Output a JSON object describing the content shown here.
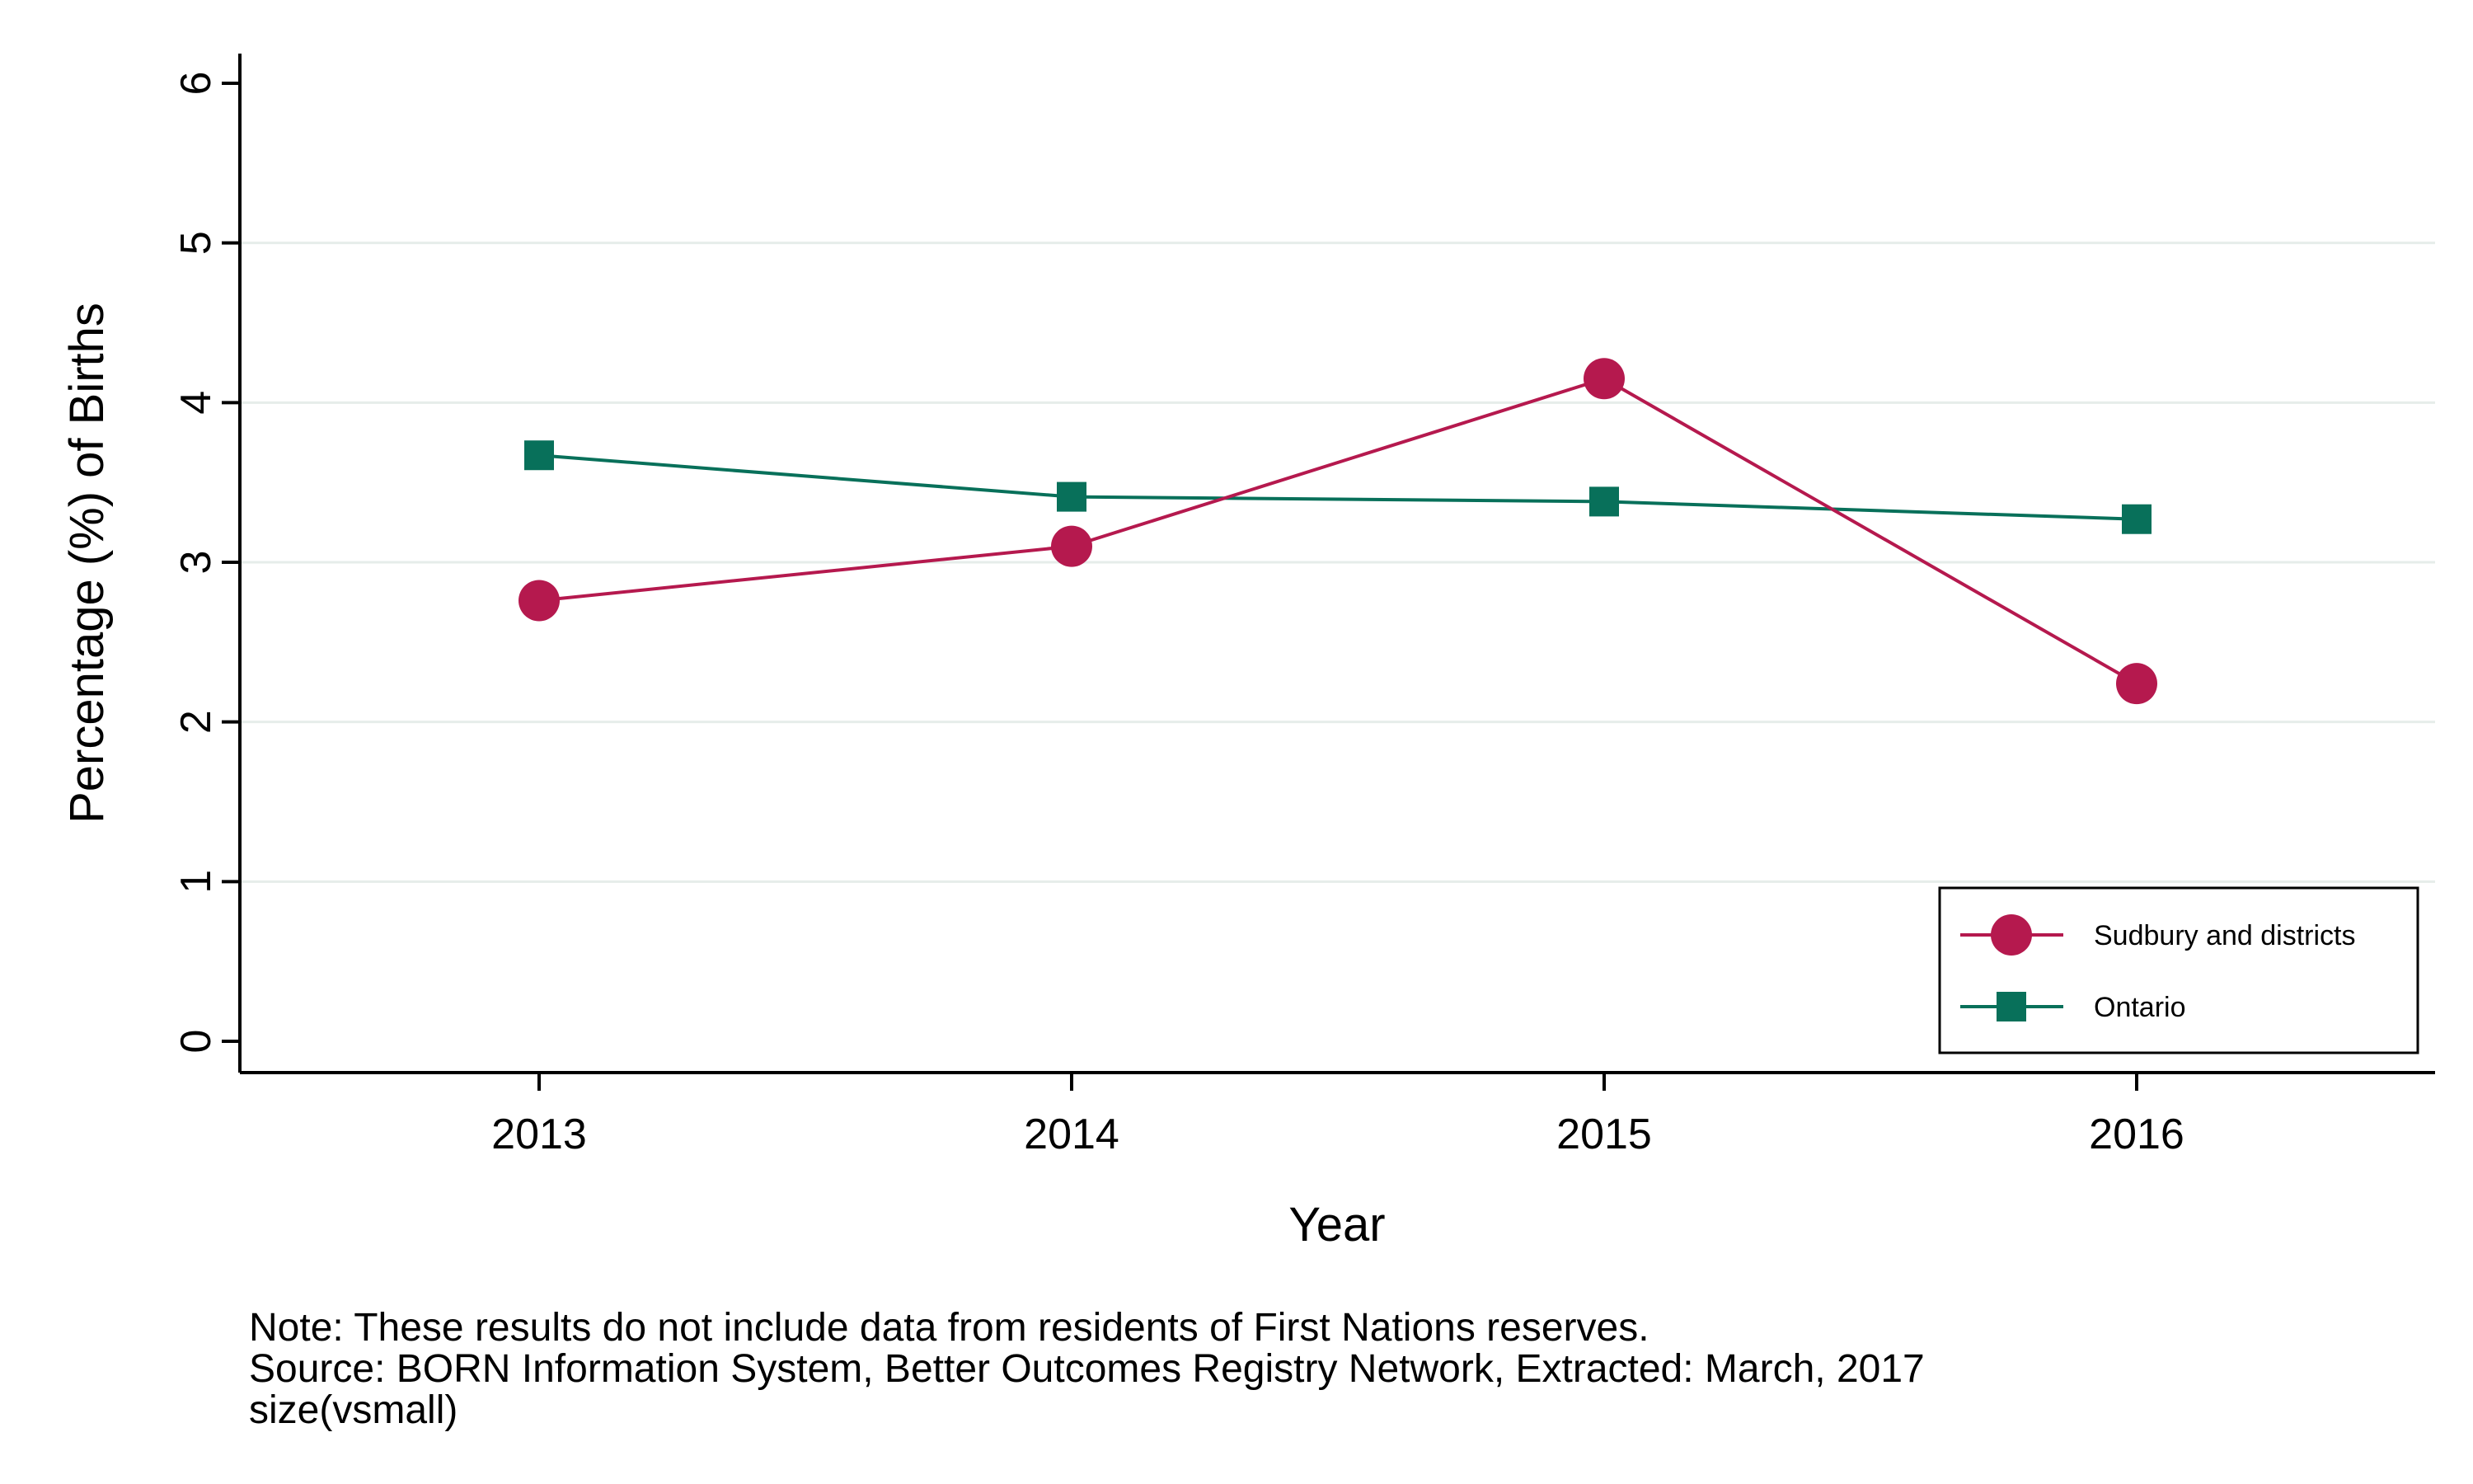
{
  "chart_data": {
    "type": "line",
    "xlabel": "Year",
    "ylabel": "Percentage (%) of Births",
    "x": [
      2013,
      2014,
      2015,
      2016
    ],
    "x_tick_labels": [
      "2013",
      "2014",
      "2015",
      "2016"
    ],
    "ylim": [
      0,
      6
    ],
    "y_ticks": [
      0,
      1,
      2,
      3,
      4,
      5,
      6
    ],
    "y_tick_labels": [
      "0",
      "1",
      "2",
      "3",
      "4",
      "5",
      "6"
    ],
    "grid": true,
    "legend_position": "bottom-right",
    "series": [
      {
        "name": "Sudbury and districts",
        "values": [
          2.76,
          3.1,
          4.15,
          2.24
        ],
        "color": "#B5194E",
        "marker": "circle"
      },
      {
        "name": "Ontario",
        "values": [
          3.67,
          3.41,
          3.38,
          3.27
        ],
        "color": "#08705A",
        "marker": "square"
      }
    ]
  },
  "notes": [
    "Note: These results do not include data from residents of First Nations reserves.",
    "Source: BORN Information System, Better Outcomes Registry Network, Extracted: March, 2017",
    "size(vsmall)"
  ]
}
